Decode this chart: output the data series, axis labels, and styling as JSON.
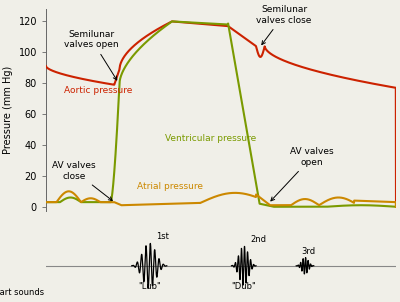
{
  "ylabel": "Pressure (mm Hg)",
  "ylim": [
    -3,
    128
  ],
  "xlim": [
    0,
    1
  ],
  "yticks": [
    0,
    20,
    40,
    60,
    80,
    100,
    120
  ],
  "aortic_color": "#cc2200",
  "ventricular_color": "#7a9a00",
  "atrial_color": "#cc8800",
  "bg_color": "#f0efe8",
  "annotation_fs": 6.5,
  "label_fs": 6.5,
  "tick_fs": 7,
  "ylabel_fs": 7
}
